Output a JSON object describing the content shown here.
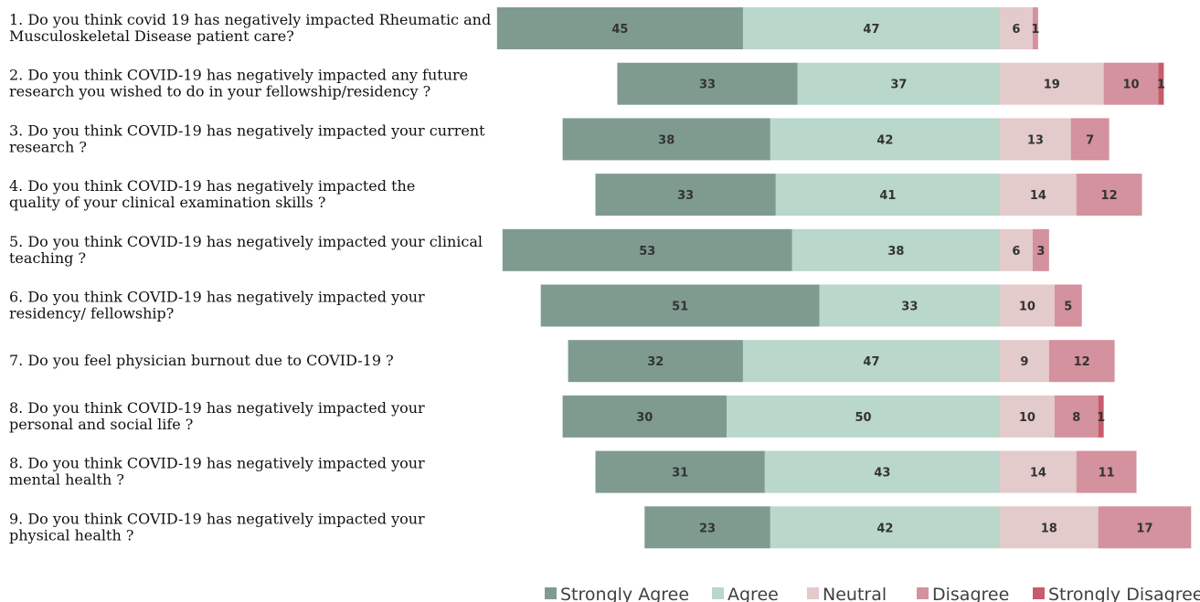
{
  "chart_data": {
    "type": "bar",
    "orientation": "horizontal",
    "stacked": true,
    "diverging": true,
    "categories": [
      [
        "1. Do you think covid 19 has negatively impacted Rheumatic and",
        "Musculoskeletal Disease patient care?"
      ],
      [
        "2. Do you think COVID-19 has negatively impacted any future",
        "research you wished to do in your fellowship/residency ?"
      ],
      [
        "3. Do you think COVID-19 has negatively impacted your current",
        "research ?"
      ],
      [
        "4. Do you think COVID-19 has negatively impacted the",
        "quality of your clinical examination skills ?"
      ],
      [
        "5. Do you think COVID-19 has negatively impacted your clinical",
        "teaching ?"
      ],
      [
        "6. Do you think COVID-19 has negatively impacted your",
        "residency/ fellowship?"
      ],
      [
        "7. Do you feel physician burnout due to COVID-19 ?"
      ],
      [
        "8. Do you think COVID-19 has negatively impacted your",
        "personal and social life ?"
      ],
      [
        "8. Do you think COVID-19 has negatively impacted your",
        "mental health ?"
      ],
      [
        "9. Do you think COVID-19 has negatively impacted your",
        "physical health ?"
      ]
    ],
    "series": [
      {
        "name": "Strongly Agree",
        "color": "#7f9b90",
        "values": [
          45,
          33,
          38,
          33,
          53,
          51,
          32,
          30,
          31,
          23
        ]
      },
      {
        "name": "Agree",
        "color": "#b9d7ca",
        "values": [
          47,
          37,
          42,
          41,
          38,
          33,
          47,
          50,
          43,
          42
        ]
      },
      {
        "name": "Neutral",
        "color": "#e3cacb",
        "values": [
          6,
          19,
          13,
          14,
          6,
          10,
          9,
          10,
          14,
          18
        ]
      },
      {
        "name": "Disagree",
        "color": "#d4919e",
        "values": [
          1,
          10,
          7,
          12,
          3,
          5,
          12,
          8,
          11,
          17
        ]
      },
      {
        "name": "Strongly Disagree",
        "color": "#c85c6b",
        "values": [
          0,
          1,
          0,
          0,
          0,
          0,
          0,
          1,
          0,
          0
        ]
      }
    ],
    "legend_position": "bottom",
    "grid": false
  }
}
